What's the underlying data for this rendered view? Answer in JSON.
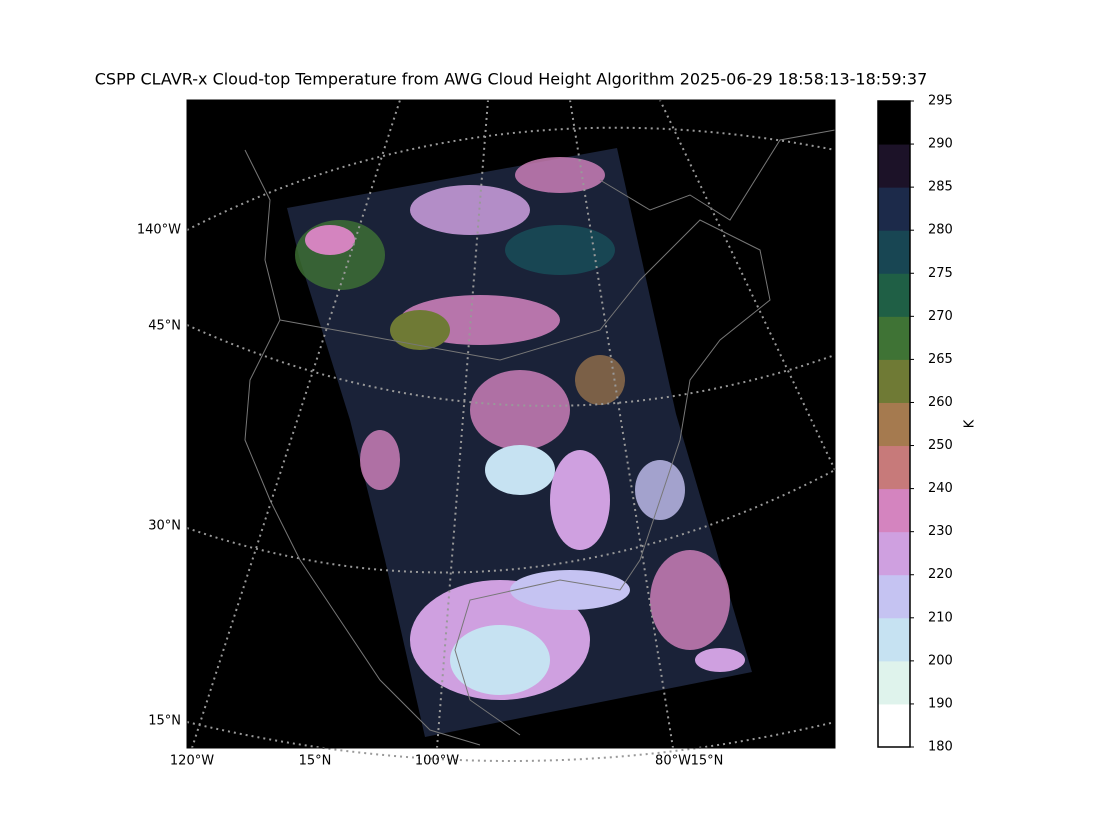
{
  "map": {
    "title": "CSPP CLAVR-x Cloud-top Temperature from AWG Cloud Height Algorithm 2025-06-29 18:58:13-18:59:37",
    "left_labels": [
      "140°W",
      "45°N",
      "30°N",
      "15°N"
    ],
    "bottom_labels": [
      "120°W",
      "15°N",
      "100°W",
      "80°W",
      "15°N"
    ],
    "colorbar": {
      "label": "K",
      "boundaries": [
        180,
        190,
        200,
        210,
        220,
        230,
        240,
        250,
        260,
        265,
        270,
        275,
        280,
        285,
        290,
        295
      ],
      "colors": [
        "#ffffff",
        "#dff3ec",
        "#c6e2f2",
        "#c5c3f2",
        "#cfa0e0",
        "#d484bf",
        "#c77a7a",
        "#a57a4f",
        "#6f7a35",
        "#3f7335",
        "#1f5f45",
        "#184653",
        "#1c2a4a",
        "#1c1228",
        "#000000"
      ]
    }
  }
}
